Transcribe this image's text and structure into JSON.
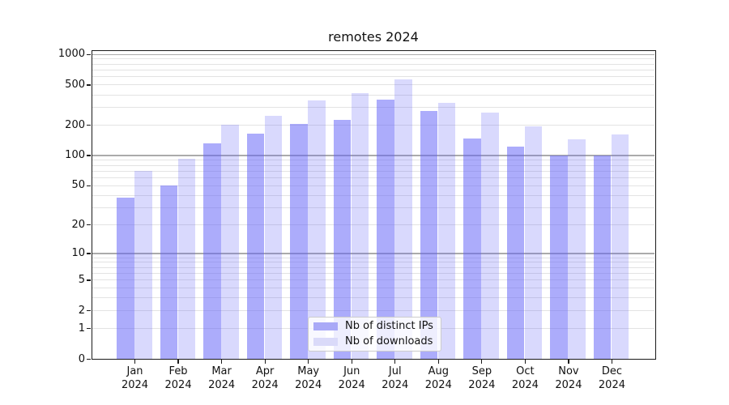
{
  "chart_data": {
    "type": "bar",
    "title": "remotes 2024",
    "categories": [
      "Jan",
      "Feb",
      "Mar",
      "Apr",
      "May",
      "Jun",
      "Jul",
      "Aug",
      "Sep",
      "Oct",
      "Nov",
      "Dec"
    ],
    "category_year": "2024",
    "series": [
      {
        "name": "Nb of distinct IPs",
        "values": [
          38,
          50,
          133,
          164,
          205,
          225,
          357,
          277,
          147,
          124,
          101,
          100
        ],
        "color": "#a9a9f7"
      },
      {
        "name": "Nb of downloads",
        "values": [
          70,
          93,
          204,
          250,
          352,
          415,
          568,
          333,
          265,
          195,
          145,
          161
        ],
        "color": "#dadaf9"
      }
    ],
    "xlabel": "",
    "ylabel": "",
    "yscale": "log1p",
    "yticks": [
      0,
      1,
      2,
      5,
      10,
      20,
      50,
      100,
      200,
      500,
      1000
    ],
    "ylim": [
      0,
      1100
    ],
    "grid": true,
    "legend_position": "lower center"
  },
  "colors": {
    "bar_base": "#5f5ff8",
    "ips_alpha": 0.52,
    "downloads_alpha": 0.24,
    "ips_bar_composite": "#a9a9f7",
    "downloads_bar_composite": "#dadaf9",
    "grid_major": "#ababab",
    "grid_minor": "#e3e3e3",
    "axis": "#1a1a1a",
    "legend_border": "#cccccc",
    "text": "#111111"
  }
}
